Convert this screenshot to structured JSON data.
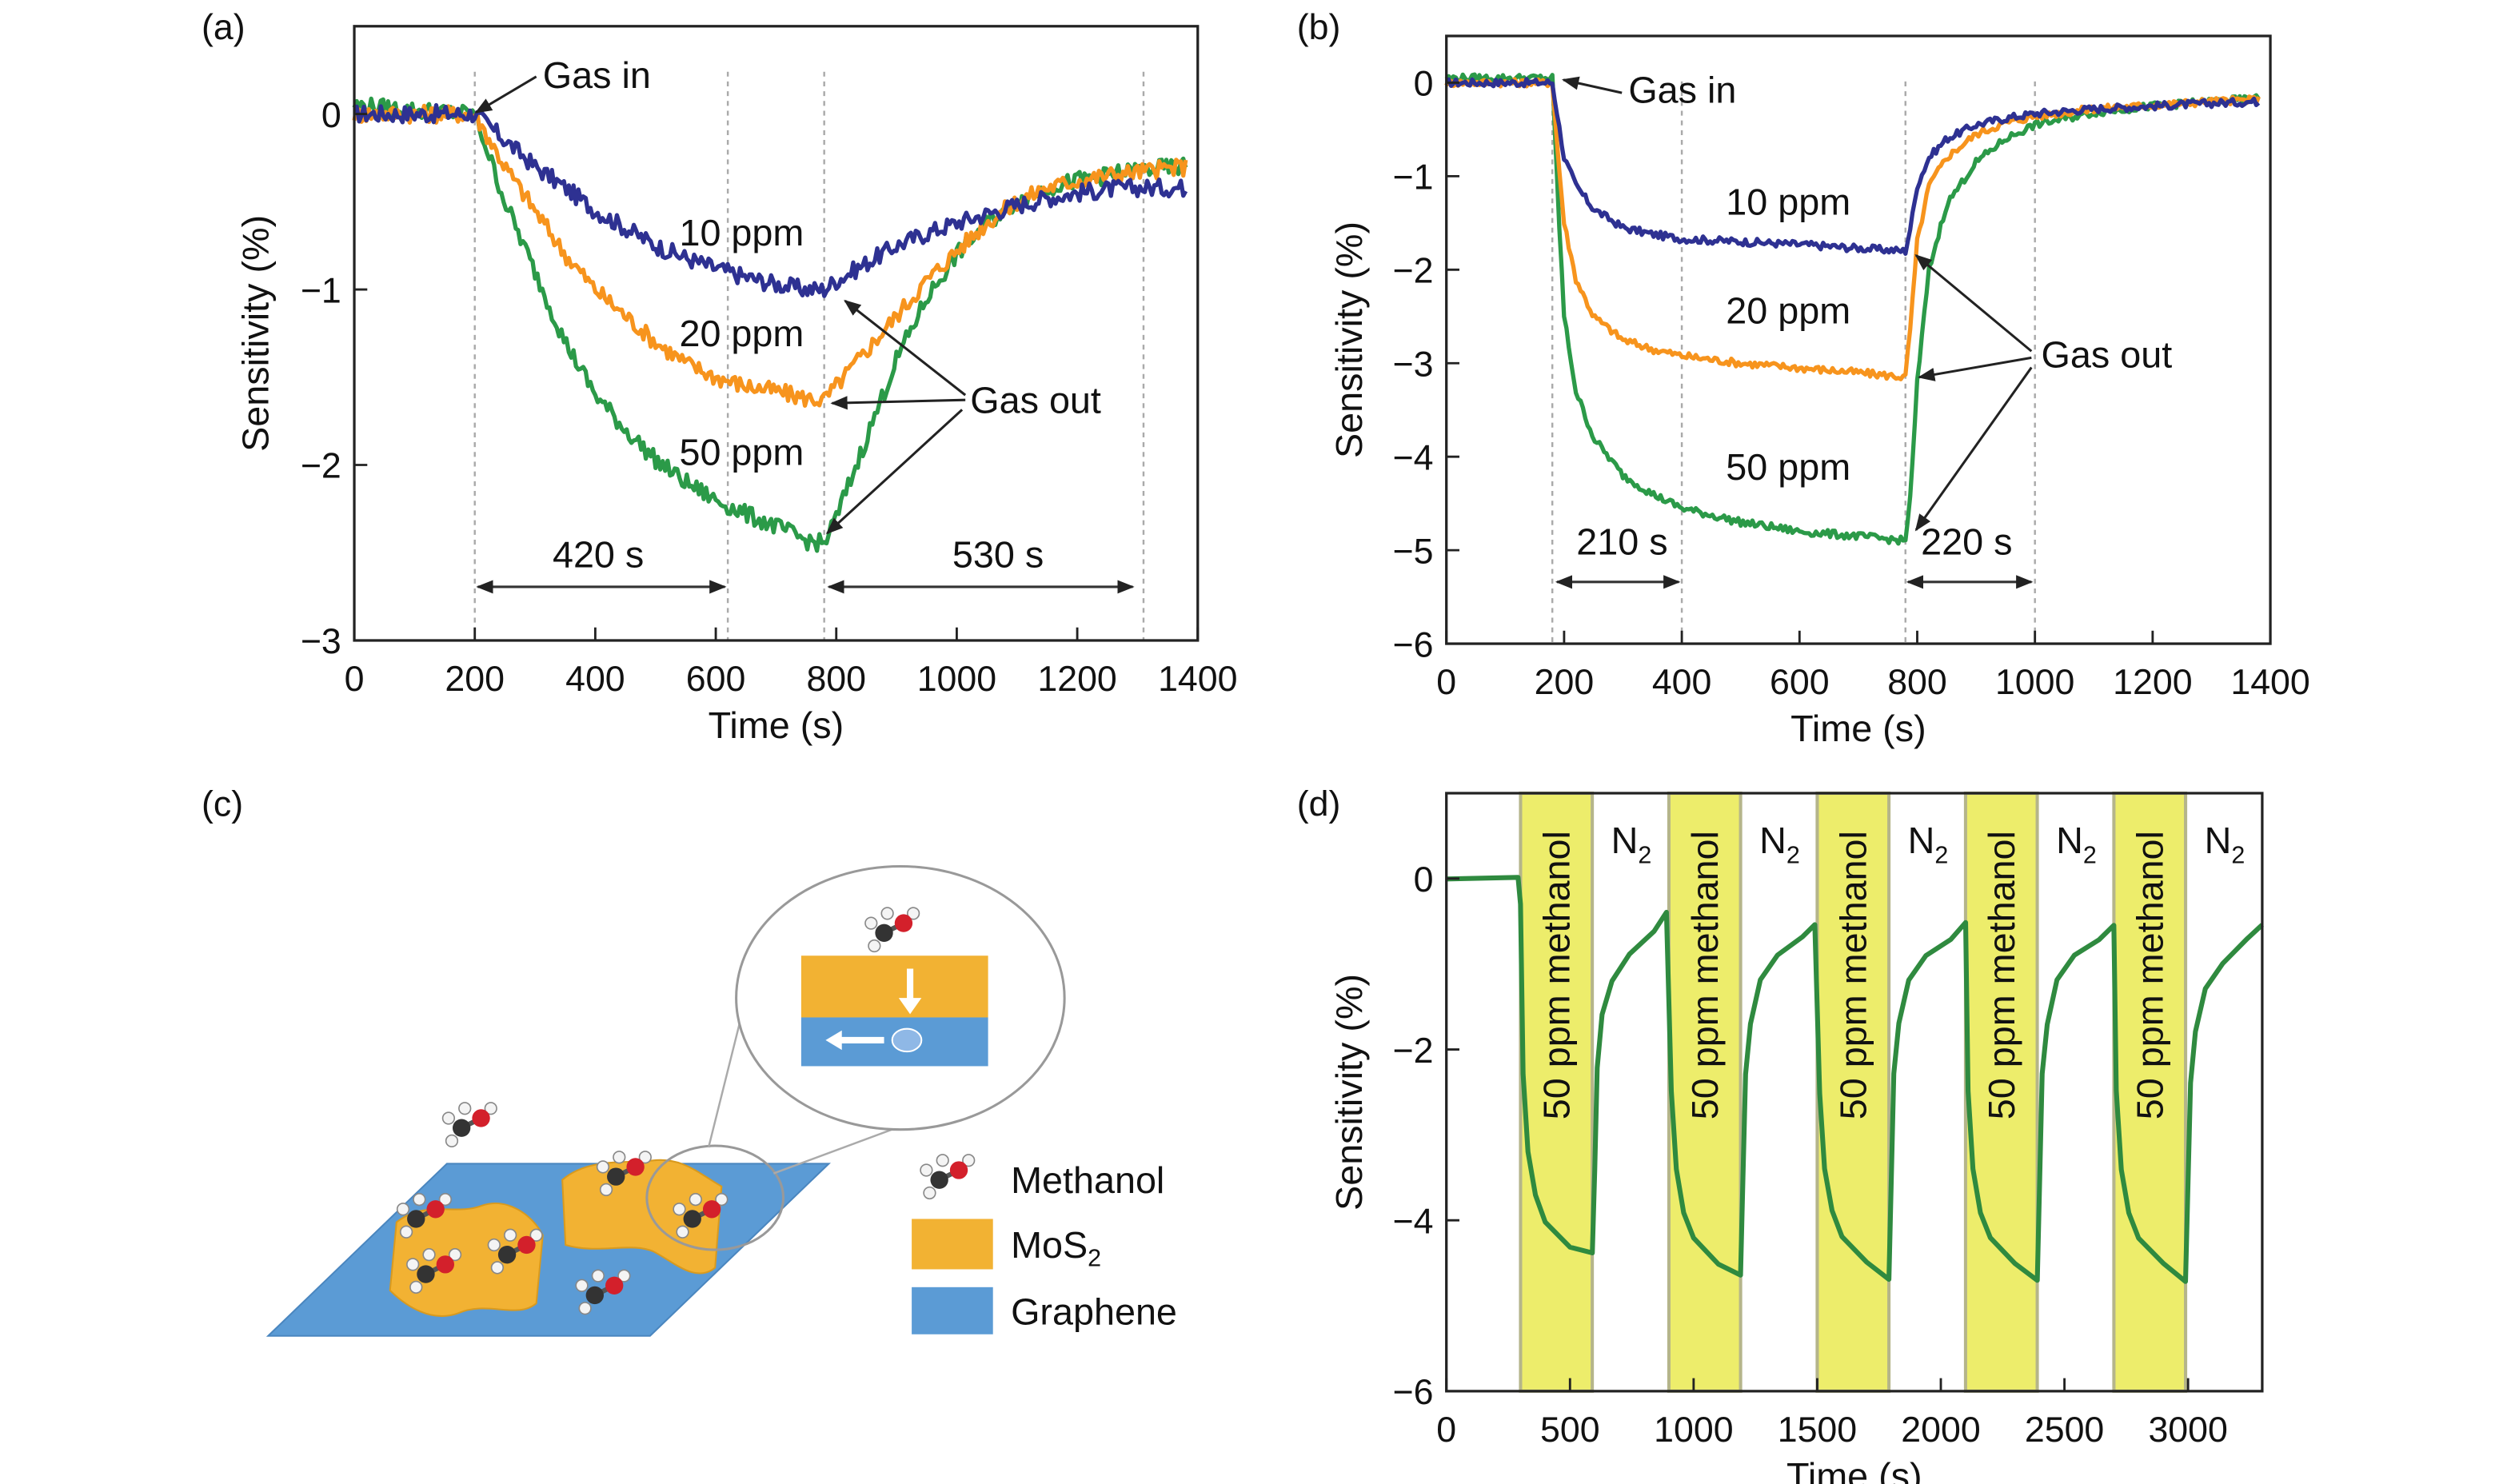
{
  "panels": {
    "a": "(a)",
    "b": "(b)",
    "c": "(c)",
    "d": "(d)"
  },
  "colors": {
    "10 ppm": "#2e3192",
    "20 ppm": "#f7941d",
    "50 ppm": "#2b9a48",
    "cycle": "#2f8a3f",
    "band": "#eded6b",
    "mos2": "#f2b233",
    "graphene": "#5b9bd5"
  },
  "annotations_a": {
    "gas_in": "Gas in",
    "gas_out": "Gas out",
    "l10": "10 ppm",
    "l20": "20 ppm",
    "l50": "50 ppm",
    "t1": "420 s",
    "t2": "530 s"
  },
  "annotations_b": {
    "gas_in": "Gas in",
    "gas_out": "Gas out",
    "l10": "10 ppm",
    "l20": "20 ppm",
    "l50": "50 ppm",
    "t1": "210 s",
    "t2": "220 s"
  },
  "annotations_d": {
    "band_label": "50 ppm methanol",
    "gap_label": "N",
    "gap_sub": "2"
  },
  "diagram_c": {
    "legend": [
      {
        "label": "Methanol",
        "sub": ""
      },
      {
        "label": "MoS",
        "sub": "2"
      },
      {
        "label": "Graphene",
        "sub": ""
      }
    ]
  },
  "chart_data": [
    {
      "panel": "a",
      "type": "line",
      "title": "",
      "xlabel": "Time (s)",
      "ylabel": "Sensitivity (%)",
      "xlim": [
        0,
        1400
      ],
      "ylim": [
        -3,
        0.5
      ],
      "xticks": [
        0,
        200,
        400,
        600,
        800,
        1000,
        1200,
        1400
      ],
      "yticks": [
        0,
        -1,
        -2,
        -3
      ],
      "markers_x": [
        200,
        620,
        780,
        1310
      ],
      "x": [
        0,
        100,
        200,
        250,
        300,
        350,
        400,
        450,
        500,
        550,
        600,
        650,
        700,
        750,
        780,
        800,
        850,
        900,
        950,
        1000,
        1050,
        1100,
        1150,
        1200,
        1250,
        1300,
        1380
      ],
      "series": [
        {
          "name": "10 ppm",
          "values": [
            0,
            0,
            0,
            -0.15,
            -0.3,
            -0.42,
            -0.55,
            -0.65,
            -0.75,
            -0.82,
            -0.88,
            -0.93,
            -0.97,
            -1.0,
            -1.0,
            -0.95,
            -0.85,
            -0.75,
            -0.68,
            -0.62,
            -0.57,
            -0.52,
            -0.48,
            -0.45,
            -0.43,
            -0.42,
            -0.42
          ]
        },
        {
          "name": "20 ppm",
          "values": [
            0,
            0,
            0,
            -0.3,
            -0.55,
            -0.8,
            -1.0,
            -1.15,
            -1.3,
            -1.42,
            -1.5,
            -1.55,
            -1.58,
            -1.62,
            -1.63,
            -1.55,
            -1.35,
            -1.15,
            -0.95,
            -0.78,
            -0.62,
            -0.5,
            -0.42,
            -0.38,
            -0.35,
            -0.33,
            -0.3
          ]
        },
        {
          "name": "50 ppm",
          "values": [
            0.05,
            0.02,
            0,
            -0.5,
            -0.9,
            -1.3,
            -1.6,
            -1.8,
            -1.97,
            -2.1,
            -2.2,
            -2.28,
            -2.35,
            -2.43,
            -2.45,
            -2.3,
            -1.85,
            -1.4,
            -1.05,
            -0.8,
            -0.62,
            -0.5,
            -0.42,
            -0.38,
            -0.35,
            -0.32,
            -0.3
          ]
        }
      ]
    },
    {
      "panel": "b",
      "type": "line",
      "title": "",
      "xlabel": "Time (s)",
      "ylabel": "Sensitivity (%)",
      "xlim": [
        0,
        1400
      ],
      "ylim": [
        -6,
        0.5
      ],
      "xticks": [
        0,
        200,
        400,
        600,
        800,
        1000,
        1200,
        1400
      ],
      "yticks": [
        0,
        -1,
        -2,
        -3,
        -4,
        -5,
        -6
      ],
      "markers_x": [
        180,
        400,
        780,
        1000
      ],
      "x": [
        0,
        100,
        180,
        190,
        200,
        220,
        250,
        300,
        350,
        400,
        500,
        600,
        700,
        780,
        790,
        800,
        820,
        850,
        900,
        950,
        1000,
        1100,
        1200,
        1300,
        1380
      ],
      "series": [
        {
          "name": "10 ppm",
          "values": [
            0,
            0,
            0,
            -0.4,
            -0.8,
            -1.1,
            -1.35,
            -1.55,
            -1.62,
            -1.67,
            -1.7,
            -1.73,
            -1.77,
            -1.8,
            -1.5,
            -1.1,
            -0.8,
            -0.6,
            -0.45,
            -0.38,
            -0.33,
            -0.28,
            -0.25,
            -0.22,
            -0.2
          ]
        },
        {
          "name": "20 ppm",
          "values": [
            0,
            0,
            0,
            -0.8,
            -1.5,
            -2.1,
            -2.5,
            -2.75,
            -2.85,
            -2.92,
            -3.0,
            -3.05,
            -3.1,
            -3.15,
            -2.5,
            -1.7,
            -1.1,
            -0.8,
            -0.55,
            -0.43,
            -0.36,
            -0.28,
            -0.24,
            -0.2,
            -0.18
          ]
        },
        {
          "name": "50 ppm",
          "values": [
            0.05,
            0.05,
            0.05,
            -1.3,
            -2.5,
            -3.3,
            -3.8,
            -4.2,
            -4.4,
            -4.55,
            -4.7,
            -4.8,
            -4.85,
            -4.9,
            -4.3,
            -3.2,
            -2.0,
            -1.3,
            -0.85,
            -0.6,
            -0.45,
            -0.32,
            -0.25,
            -0.2,
            -0.17
          ]
        }
      ]
    },
    {
      "panel": "d",
      "type": "line",
      "title": "",
      "xlabel": "Time (s)",
      "ylabel": "Sensitivity (%)",
      "xlim": [
        0,
        3300
      ],
      "ylim": [
        -6,
        1
      ],
      "xticks": [
        0,
        500,
        1000,
        1500,
        2000,
        2500,
        3000
      ],
      "yticks": [
        0,
        -2,
        -4,
        -6
      ],
      "methanol_intervals": [
        [
          300,
          590
        ],
        [
          900,
          1190
        ],
        [
          1500,
          1790
        ],
        [
          2100,
          2390
        ],
        [
          2700,
          2990
        ]
      ],
      "points": [
        [
          0,
          0
        ],
        [
          290,
          0
        ],
        [
          300,
          -0.3
        ],
        [
          310,
          -2.3
        ],
        [
          330,
          -3.2
        ],
        [
          360,
          -3.7
        ],
        [
          400,
          -4.0
        ],
        [
          500,
          -4.3
        ],
        [
          590,
          -4.4
        ],
        [
          600,
          -3.4
        ],
        [
          610,
          -2.2
        ],
        [
          630,
          -1.6
        ],
        [
          670,
          -1.2
        ],
        [
          740,
          -0.9
        ],
        [
          840,
          -0.6
        ],
        [
          890,
          -0.4
        ],
        [
          910,
          -2.5
        ],
        [
          930,
          -3.4
        ],
        [
          960,
          -3.9
        ],
        [
          1000,
          -4.2
        ],
        [
          1100,
          -4.5
        ],
        [
          1190,
          -4.65
        ],
        [
          1200,
          -3.5
        ],
        [
          1210,
          -2.3
        ],
        [
          1230,
          -1.7
        ],
        [
          1270,
          -1.2
        ],
        [
          1340,
          -0.9
        ],
        [
          1440,
          -0.7
        ],
        [
          1490,
          -0.55
        ],
        [
          1510,
          -2.5
        ],
        [
          1530,
          -3.4
        ],
        [
          1560,
          -3.9
        ],
        [
          1600,
          -4.2
        ],
        [
          1700,
          -4.5
        ],
        [
          1790,
          -4.7
        ],
        [
          1800,
          -3.5
        ],
        [
          1810,
          -2.3
        ],
        [
          1830,
          -1.7
        ],
        [
          1870,
          -1.2
        ],
        [
          1940,
          -0.9
        ],
        [
          2040,
          -0.7
        ],
        [
          2100,
          -0.5
        ],
        [
          2110,
          -2.5
        ],
        [
          2130,
          -3.4
        ],
        [
          2160,
          -3.9
        ],
        [
          2200,
          -4.2
        ],
        [
          2300,
          -4.5
        ],
        [
          2390,
          -4.7
        ],
        [
          2400,
          -3.5
        ],
        [
          2410,
          -2.3
        ],
        [
          2430,
          -1.7
        ],
        [
          2470,
          -1.2
        ],
        [
          2540,
          -0.9
        ],
        [
          2640,
          -0.7
        ],
        [
          2700,
          -0.55
        ],
        [
          2710,
          -2.5
        ],
        [
          2730,
          -3.4
        ],
        [
          2760,
          -3.9
        ],
        [
          2800,
          -4.2
        ],
        [
          2900,
          -4.5
        ],
        [
          2990,
          -4.7
        ],
        [
          3000,
          -3.5
        ],
        [
          3010,
          -2.4
        ],
        [
          3030,
          -1.8
        ],
        [
          3070,
          -1.3
        ],
        [
          3140,
          -1.0
        ],
        [
          3240,
          -0.7
        ],
        [
          3300,
          -0.55
        ]
      ]
    }
  ]
}
